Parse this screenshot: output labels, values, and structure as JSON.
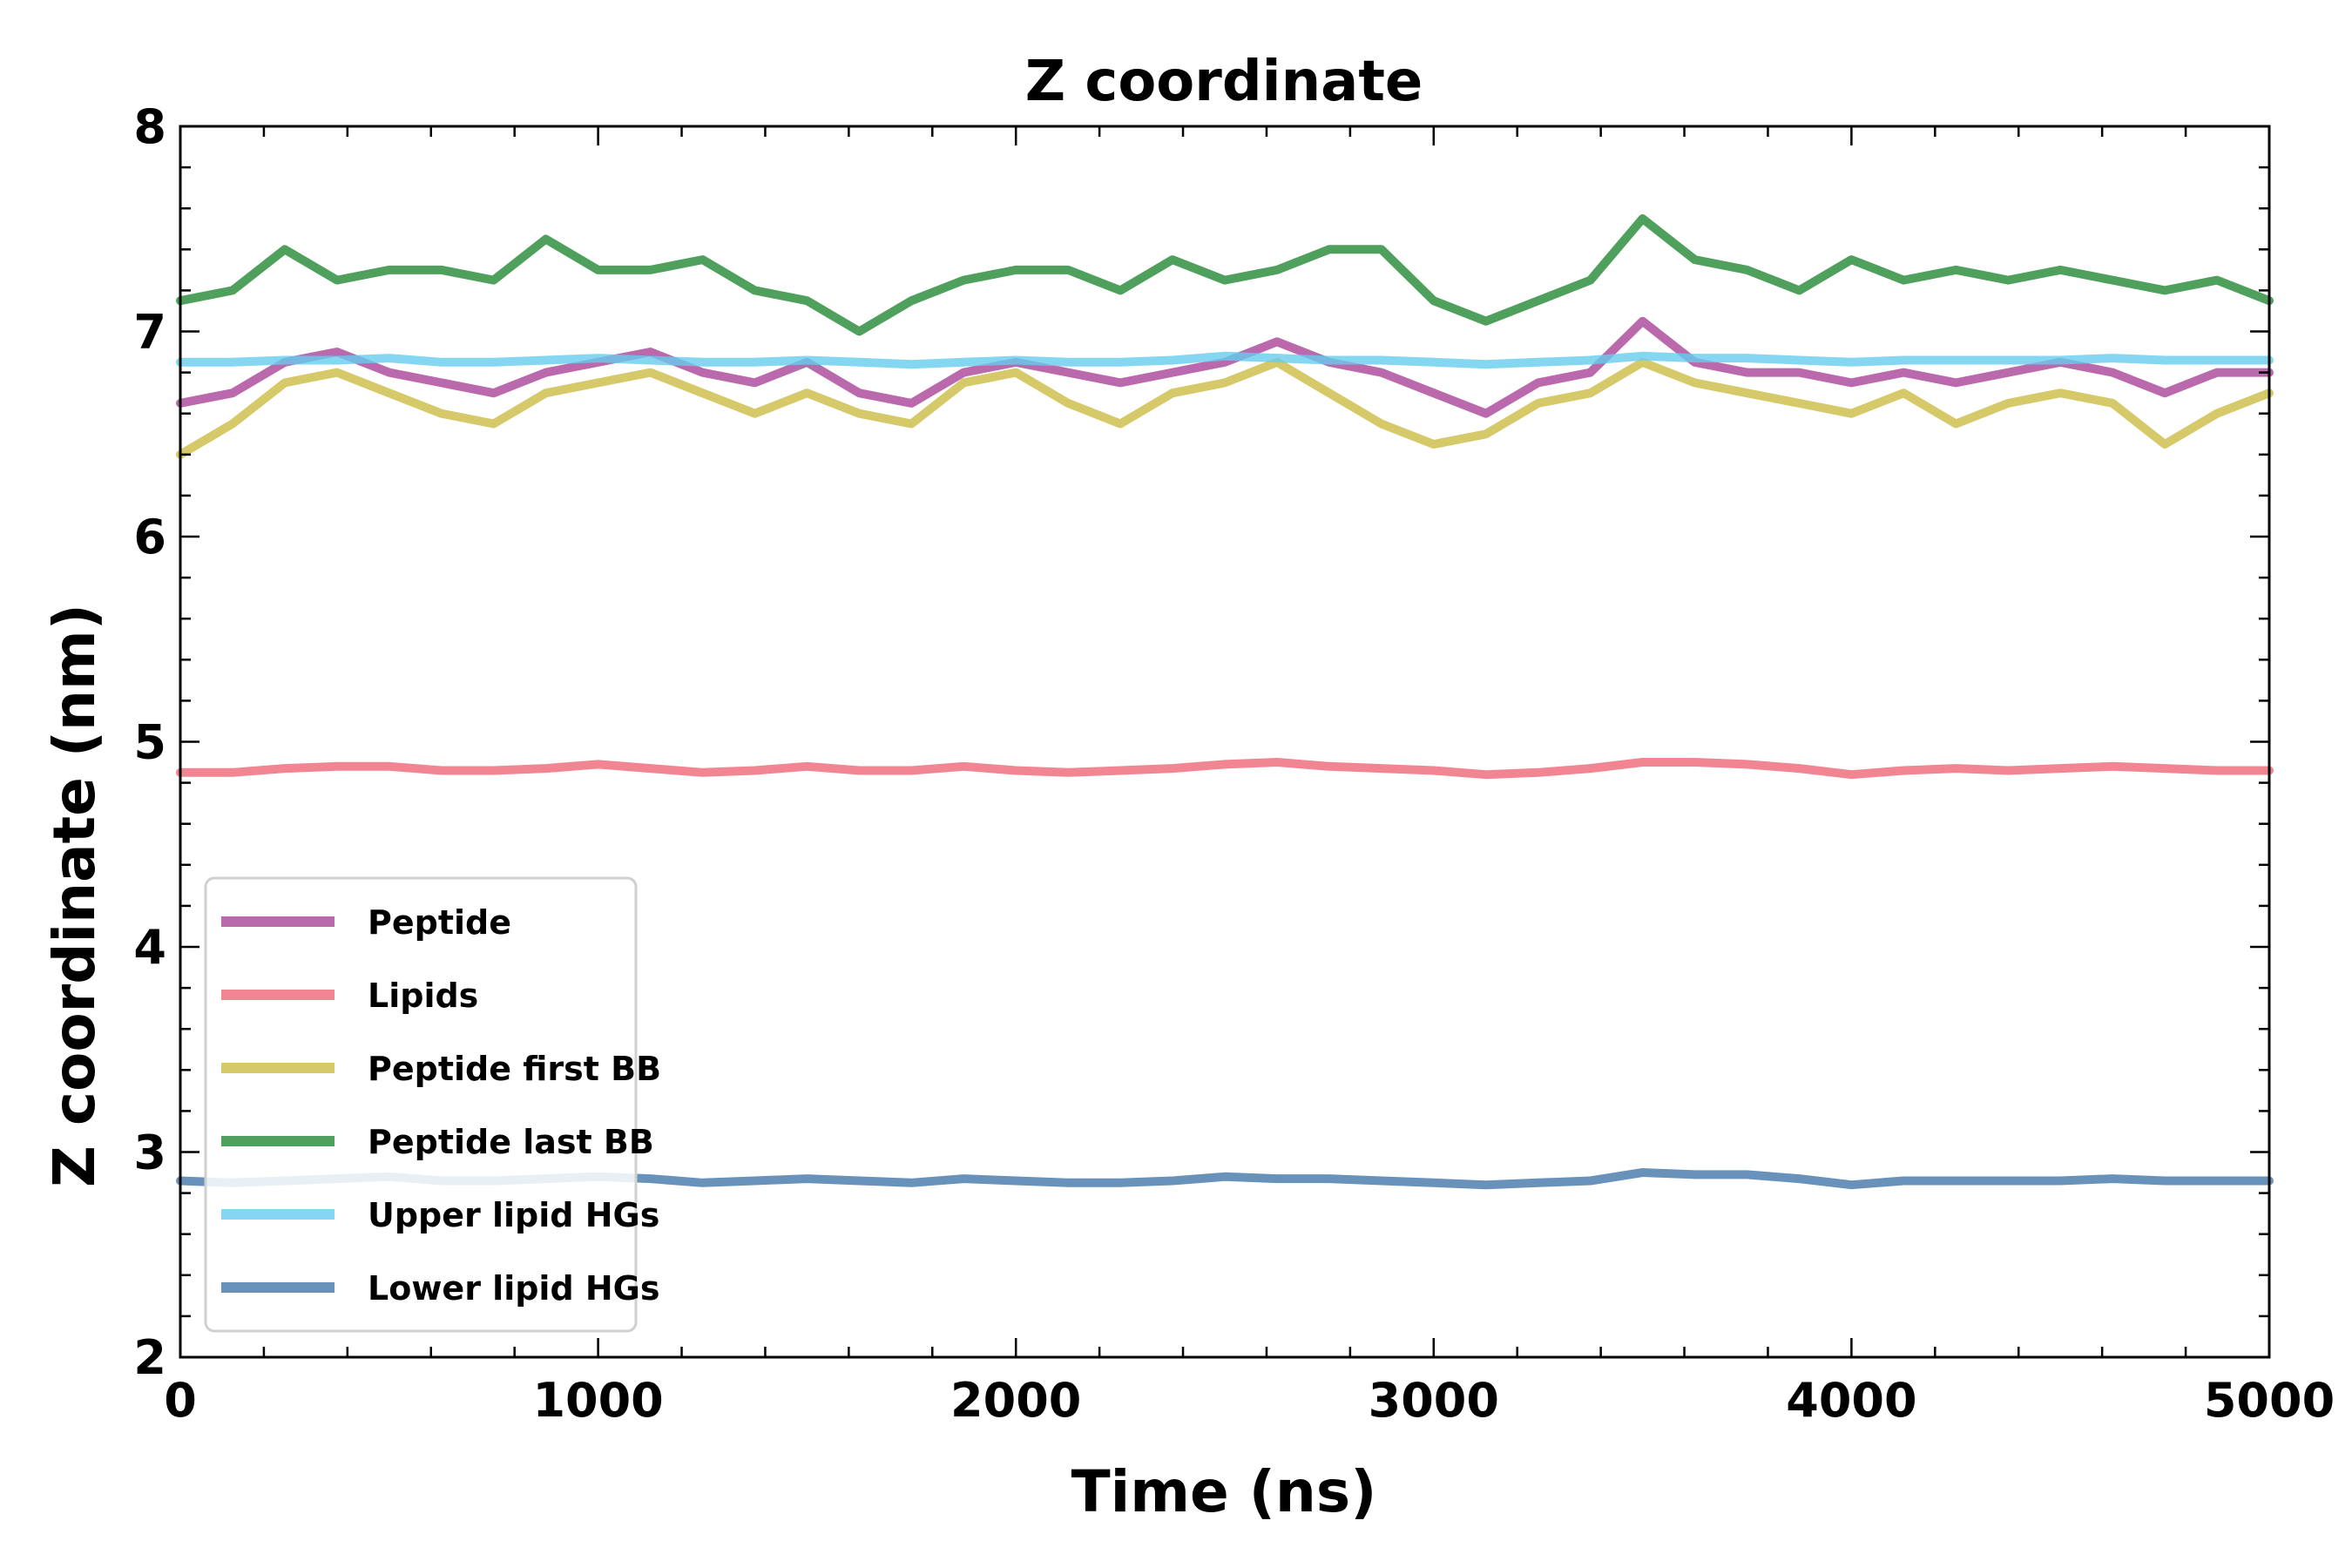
{
  "chart_data": {
    "type": "line",
    "title": "Z coordinate",
    "xlabel": "Time (ns)",
    "ylabel": "Z coordinate (nm)",
    "xlim": [
      0,
      5000
    ],
    "ylim": [
      2,
      8
    ],
    "xticks": [
      "0",
      "1000",
      "2000",
      "3000",
      "4000",
      "5000"
    ],
    "yticks": [
      "2",
      "3",
      "4",
      "5",
      "6",
      "7",
      "8"
    ],
    "grid": false,
    "legend_position": "lower-left",
    "x": [
      0,
      125,
      250,
      375,
      500,
      625,
      750,
      875,
      1000,
      1125,
      1250,
      1375,
      1500,
      1625,
      1750,
      1875,
      2000,
      2125,
      2250,
      2375,
      2500,
      2625,
      2750,
      2875,
      3000,
      3125,
      3250,
      3375,
      3500,
      3625,
      3750,
      3875,
      4000,
      4125,
      4250,
      4375,
      4500,
      4625,
      4750,
      4875,
      5000
    ],
    "series": [
      {
        "name": "Peptide",
        "color": "#aa4499",
        "values": [
          6.65,
          6.7,
          6.85,
          6.9,
          6.8,
          6.75,
          6.7,
          6.8,
          6.85,
          6.9,
          6.8,
          6.75,
          6.85,
          6.7,
          6.65,
          6.8,
          6.85,
          6.8,
          6.75,
          6.8,
          6.85,
          6.95,
          6.85,
          6.8,
          6.7,
          6.6,
          6.75,
          6.8,
          7.05,
          6.85,
          6.8,
          6.8,
          6.75,
          6.8,
          6.75,
          6.8,
          6.85,
          6.8,
          6.7,
          6.8,
          6.8
        ]
      },
      {
        "name": "Lipids",
        "color": "#ee6677",
        "values": [
          4.85,
          4.85,
          4.87,
          4.88,
          4.88,
          4.86,
          4.86,
          4.87,
          4.89,
          4.87,
          4.85,
          4.86,
          4.88,
          4.86,
          4.86,
          4.88,
          4.86,
          4.85,
          4.86,
          4.87,
          4.89,
          4.9,
          4.88,
          4.87,
          4.86,
          4.84,
          4.85,
          4.87,
          4.9,
          4.9,
          4.89,
          4.87,
          4.84,
          4.86,
          4.87,
          4.86,
          4.87,
          4.88,
          4.87,
          4.86,
          4.86
        ]
      },
      {
        "name": "Peptide first BB",
        "color": "#ccbb44",
        "values": [
          6.4,
          6.55,
          6.75,
          6.8,
          6.7,
          6.6,
          6.55,
          6.7,
          6.75,
          6.8,
          6.7,
          6.6,
          6.7,
          6.6,
          6.55,
          6.75,
          6.8,
          6.65,
          6.55,
          6.7,
          6.75,
          6.85,
          6.7,
          6.55,
          6.45,
          6.5,
          6.65,
          6.7,
          6.85,
          6.75,
          6.7,
          6.65,
          6.6,
          6.7,
          6.55,
          6.65,
          6.7,
          6.65,
          6.45,
          6.6,
          6.7
        ]
      },
      {
        "name": "Peptide last BB",
        "color": "#228833",
        "values": [
          7.15,
          7.2,
          7.4,
          7.25,
          7.3,
          7.3,
          7.25,
          7.45,
          7.3,
          7.3,
          7.35,
          7.2,
          7.15,
          7.0,
          7.15,
          7.25,
          7.3,
          7.3,
          7.2,
          7.35,
          7.25,
          7.3,
          7.4,
          7.4,
          7.15,
          7.05,
          7.15,
          7.25,
          7.55,
          7.35,
          7.3,
          7.2,
          7.35,
          7.25,
          7.3,
          7.25,
          7.3,
          7.25,
          7.2,
          7.25,
          7.15
        ]
      },
      {
        "name": "Upper lipid HGs",
        "color": "#66ccee",
        "values": [
          6.85,
          6.85,
          6.86,
          6.86,
          6.87,
          6.85,
          6.85,
          6.86,
          6.87,
          6.86,
          6.85,
          6.85,
          6.86,
          6.85,
          6.84,
          6.85,
          6.86,
          6.85,
          6.85,
          6.86,
          6.88,
          6.87,
          6.86,
          6.86,
          6.85,
          6.84,
          6.85,
          6.86,
          6.88,
          6.87,
          6.87,
          6.86,
          6.85,
          6.86,
          6.86,
          6.86,
          6.86,
          6.87,
          6.86,
          6.86,
          6.86
        ]
      },
      {
        "name": "Lower lipid HGs",
        "color": "#4477aa",
        "values": [
          2.86,
          2.85,
          2.86,
          2.87,
          2.88,
          2.86,
          2.86,
          2.87,
          2.88,
          2.87,
          2.85,
          2.86,
          2.87,
          2.86,
          2.85,
          2.87,
          2.86,
          2.85,
          2.85,
          2.86,
          2.88,
          2.87,
          2.87,
          2.86,
          2.85,
          2.84,
          2.85,
          2.86,
          2.9,
          2.89,
          2.89,
          2.87,
          2.84,
          2.86,
          2.86,
          2.86,
          2.86,
          2.87,
          2.86,
          2.86,
          2.86
        ]
      }
    ]
  }
}
